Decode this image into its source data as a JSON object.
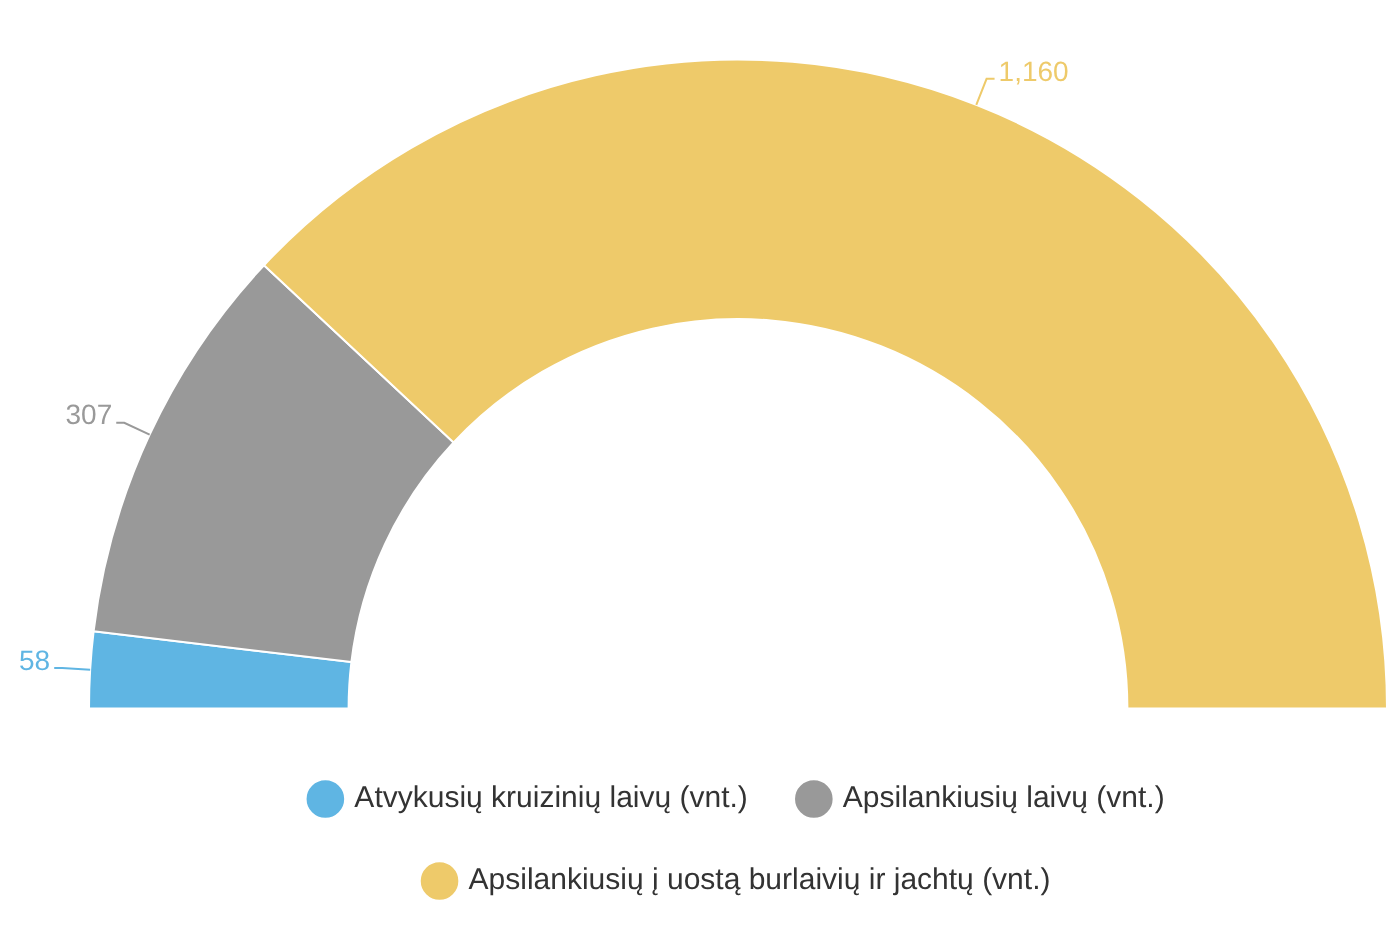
{
  "chart_data": {
    "type": "donut",
    "categories": [
      "Atvykusių kruizinių laivų (vnt.)",
      "Apsilankiusių laivų (vnt.)",
      "Apsilankiusių į uostą burlaivių ir jachtų (vnt.)"
    ],
    "values": [
      58,
      307,
      1160
    ],
    "colors": [
      "#5fb5e3",
      "#999999",
      "#eeca6a"
    ],
    "value_labels": [
      "58",
      "307",
      "1,160"
    ],
    "legend": "bottom"
  }
}
